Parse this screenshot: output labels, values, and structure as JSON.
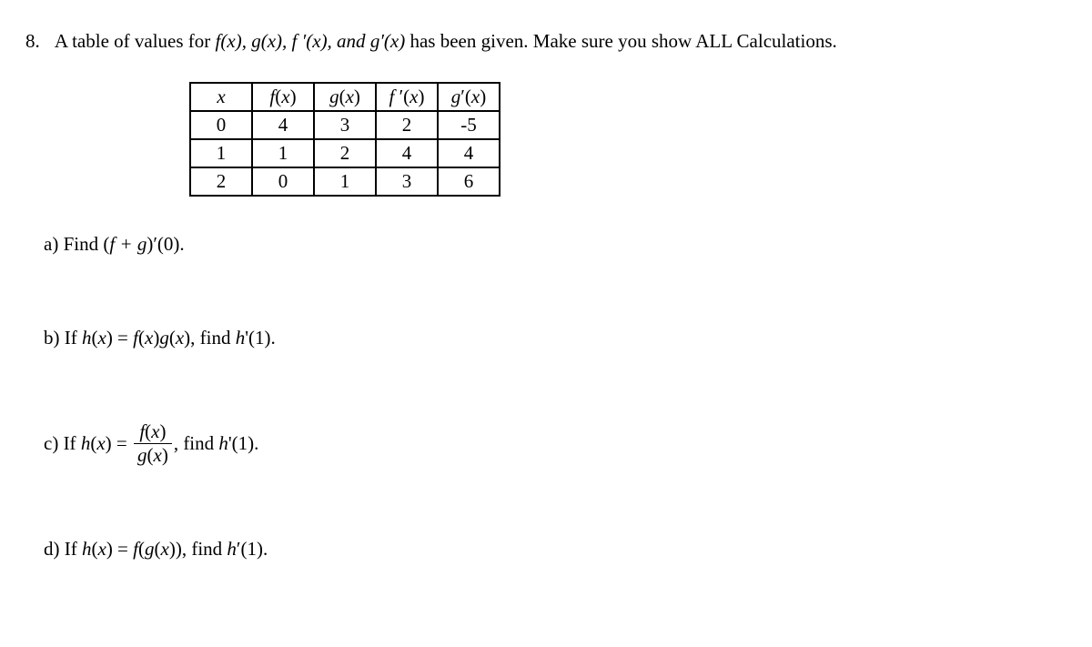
{
  "problem": {
    "number": "8.",
    "statement_prefix": "A table of values for ",
    "funcs": "f(x), g(x), f ′(x), and g′(x)",
    "statement_suffix": " has been given.  Make sure you show ALL Calculations."
  },
  "table": {
    "headers": {
      "x": "x",
      "fx": "f(x)",
      "gx": "g(x)",
      "fpx": "f ′(x)",
      "gpx": "g′(x)"
    },
    "rows": [
      {
        "x": "0",
        "fx": "4",
        "gx": "3",
        "fpx": "2",
        "gpx": "-5"
      },
      {
        "x": "1",
        "fx": "1",
        "gx": "2",
        "fpx": "4",
        "gpx": "4"
      },
      {
        "x": "2",
        "fx": "0",
        "gx": "1",
        "fpx": "3",
        "gpx": "6"
      }
    ]
  },
  "parts": {
    "a": {
      "label": "a) Find (",
      "expr": "f + g",
      "suffix": ")′(0)."
    },
    "b": {
      "label": "b) If ",
      "hx": "h(x) = f(x)g(x)",
      "suffix": ", find ",
      "find": "h'(1)."
    },
    "c": {
      "label": "c) If ",
      "hx_prefix": "h(x) = ",
      "num": "f(x)",
      "den": "g(x)",
      "suffix": ", find ",
      "find": "h'(1)."
    },
    "d": {
      "label": "d) If ",
      "hx": "h(x) = f(g(x))",
      "suffix": ", find ",
      "find": "h′(1)."
    }
  }
}
